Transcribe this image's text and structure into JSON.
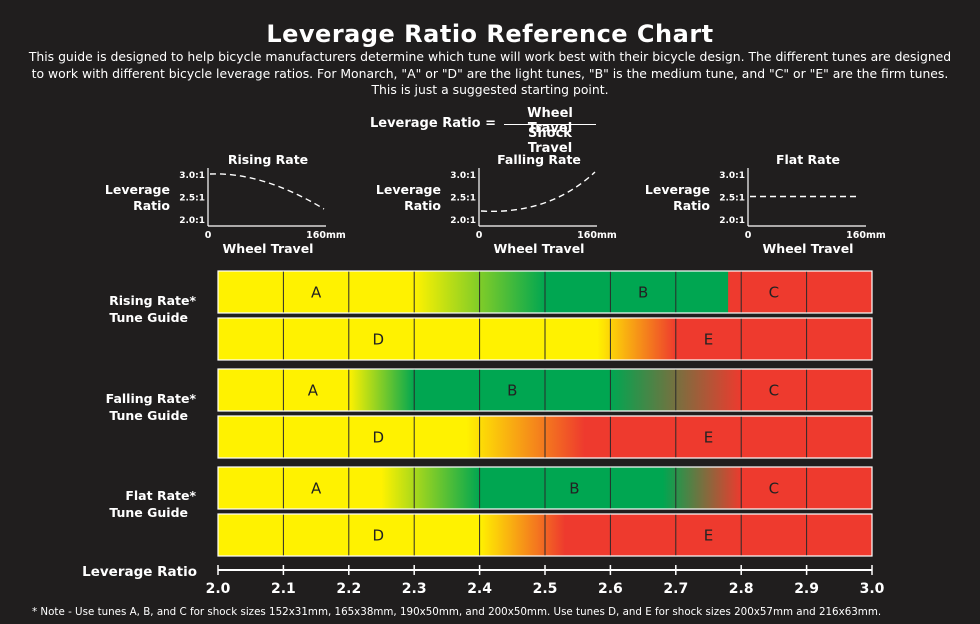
{
  "header": {
    "title": "Leverage Ratio Reference Chart",
    "description": "This guide is designed to help bicycle manufacturers determine which tune will work best with their bicycle design. The different tunes are designed to work with different bicycle leverage ratios. For Monarch, \"A\" or \"D\" are the light tunes, \"B\" is the medium tune, and \"C\" or \"E\" are the firm tunes. This is just a suggested starting point."
  },
  "formula": {
    "lhs": "Leverage Ratio =",
    "numerator": "Wheel Travel",
    "denominator": "Shock Travel"
  },
  "mini_charts": [
    {
      "title": "Rising Rate",
      "ylabel_line1": "Leverage",
      "ylabel_line2": "Ratio",
      "yticks": [
        "3.0:1",
        "2.5:1",
        "2.0:1"
      ],
      "xtick_start": "0",
      "xtick_end": "160mm",
      "xlabel": "Wheel Travel",
      "curve": "falling"
    },
    {
      "title": "Falling Rate",
      "ylabel_line1": "Leverage",
      "ylabel_line2": "Ratio",
      "yticks": [
        "3.0:1",
        "2.5:1",
        "2.0:1"
      ],
      "xtick_start": "0",
      "xtick_end": "160mm",
      "xlabel": "Wheel Travel",
      "curve": "rising"
    },
    {
      "title": "Flat Rate",
      "ylabel_line1": "Leverage",
      "ylabel_line2": "Ratio",
      "yticks": [
        "3.0:1",
        "2.5:1",
        "2.0:1"
      ],
      "xtick_start": "0",
      "xtick_end": "160mm",
      "xlabel": "Wheel Travel",
      "curve": "flat"
    }
  ],
  "chart_data": {
    "type": "bar",
    "orientation": "horizontal",
    "xlabel": "Leverage Ratio",
    "xlim": [
      2.0,
      3.0
    ],
    "xticks": [
      "2.0",
      "2.1",
      "2.2",
      "2.3",
      "2.4",
      "2.5",
      "2.6",
      "2.7",
      "2.8",
      "2.9",
      "3.0"
    ],
    "grid": true,
    "colors": {
      "light": "#fff200",
      "medium": "#00a651",
      "firm": "#ee3a2e"
    },
    "groups": [
      {
        "label_line1": "Rising Rate*",
        "label_line2": "Tune Guide",
        "rows": [
          {
            "tunes": [
              "A",
              "B",
              "C"
            ],
            "label_at": [
              2.15,
              2.65,
              2.85
            ],
            "bands": [
              {
                "from": 2.0,
                "to": 2.3,
                "color": "light"
              },
              {
                "from": 2.3,
                "to": 2.5,
                "color": "light-to-medium"
              },
              {
                "from": 2.5,
                "to": 2.78,
                "color": "medium"
              },
              {
                "from": 2.78,
                "to": 3.0,
                "color": "firm"
              }
            ]
          },
          {
            "tunes": [
              "D",
              "E"
            ],
            "label_at": [
              2.245,
              2.75
            ],
            "bands": [
              {
                "from": 2.0,
                "to": 2.58,
                "color": "light"
              },
              {
                "from": 2.58,
                "to": 2.7,
                "color": "light-to-firm"
              },
              {
                "from": 2.7,
                "to": 3.0,
                "color": "firm"
              }
            ]
          }
        ]
      },
      {
        "label_line1": "Falling Rate*",
        "label_line2": "Tune Guide",
        "rows": [
          {
            "tunes": [
              "A",
              "B",
              "C"
            ],
            "label_at": [
              2.145,
              2.45,
              2.85
            ],
            "bands": [
              {
                "from": 2.0,
                "to": 2.2,
                "color": "light"
              },
              {
                "from": 2.2,
                "to": 2.3,
                "color": "light-to-medium"
              },
              {
                "from": 2.3,
                "to": 2.6,
                "color": "medium"
              },
              {
                "from": 2.6,
                "to": 2.8,
                "color": "medium-to-firm"
              },
              {
                "from": 2.8,
                "to": 3.0,
                "color": "firm"
              }
            ]
          },
          {
            "tunes": [
              "D",
              "E"
            ],
            "label_at": [
              2.245,
              2.75
            ],
            "bands": [
              {
                "from": 2.0,
                "to": 2.38,
                "color": "light"
              },
              {
                "from": 2.38,
                "to": 2.56,
                "color": "light-to-firm"
              },
              {
                "from": 2.56,
                "to": 3.0,
                "color": "firm"
              }
            ]
          }
        ]
      },
      {
        "label_line1": "Flat Rate*",
        "label_line2": "Tune Guide",
        "rows": [
          {
            "tunes": [
              "A",
              "B",
              "C"
            ],
            "label_at": [
              2.15,
              2.545,
              2.85
            ],
            "bands": [
              {
                "from": 2.0,
                "to": 2.25,
                "color": "light"
              },
              {
                "from": 2.25,
                "to": 2.4,
                "color": "light-to-medium"
              },
              {
                "from": 2.4,
                "to": 2.68,
                "color": "medium"
              },
              {
                "from": 2.68,
                "to": 2.8,
                "color": "medium-to-firm"
              },
              {
                "from": 2.8,
                "to": 3.0,
                "color": "firm"
              }
            ]
          },
          {
            "tunes": [
              "D",
              "E"
            ],
            "label_at": [
              2.245,
              2.75
            ],
            "bands": [
              {
                "from": 2.0,
                "to": 2.4,
                "color": "light"
              },
              {
                "from": 2.4,
                "to": 2.53,
                "color": "light-to-firm"
              },
              {
                "from": 2.53,
                "to": 3.0,
                "color": "firm"
              }
            ]
          }
        ]
      }
    ]
  },
  "footnote": "* Note - Use tunes A, B, and C for shock sizes 152x31mm, 165x38mm, 190x50mm, and 200x50mm.  Use tunes D, and E for shock sizes 200x57mm and 216x63mm."
}
